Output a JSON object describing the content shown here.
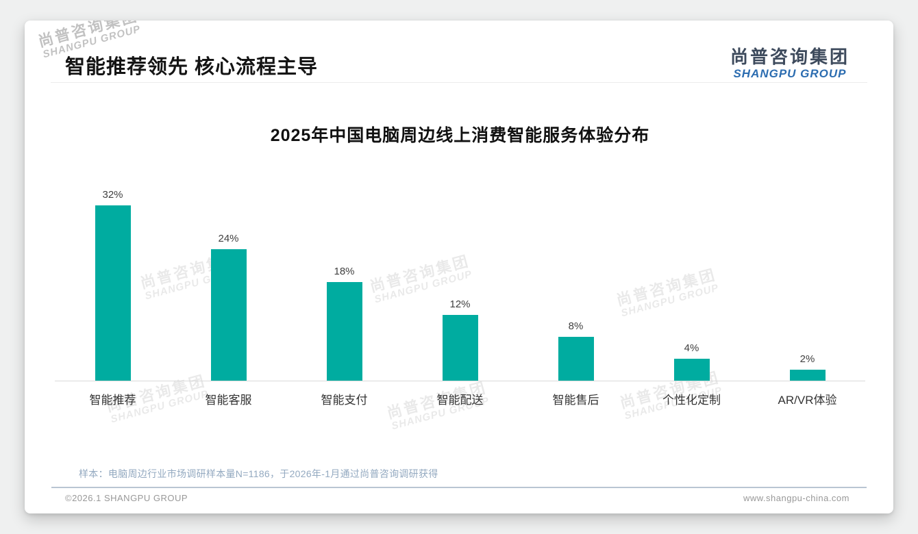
{
  "header": {
    "title": "智能推荐领先 核心流程主导",
    "logo": {
      "zh": "尚普咨询集团",
      "en": "SHANGPU GROUP"
    }
  },
  "watermark": {
    "zh": "尚普咨询集团",
    "en": "SHANGPU GROUP"
  },
  "chart_data": {
    "type": "bar",
    "title": "2025年中国电脑周边线上消费智能服务体验分布",
    "categories": [
      "智能推荐",
      "智能客服",
      "智能支付",
      "智能配送",
      "智能售后",
      "个性化定制",
      "AR/VR体验"
    ],
    "values": [
      32,
      24,
      18,
      12,
      8,
      4,
      2
    ],
    "value_labels": [
      "32%",
      "24%",
      "18%",
      "12%",
      "8%",
      "4%",
      "2%"
    ],
    "unit": "%",
    "bar_color": "#00ACA0",
    "ylim": [
      0,
      32
    ],
    "grid": false,
    "legend": false,
    "xlabel": "",
    "ylabel": ""
  },
  "footnote": "样本：电脑周边行业市场调研样本量N=1186，于2026年-1月通过尚普咨询调研获得",
  "footer": {
    "copyright": "©2026.1 SHANGPU GROUP",
    "website": "www.shangpu-china.com"
  },
  "colors": {
    "bar": "#00ACA0",
    "logo_dark": "#3D4A5C",
    "logo_blue": "#2B6CB0",
    "footnote_text": "#93A9C0"
  }
}
